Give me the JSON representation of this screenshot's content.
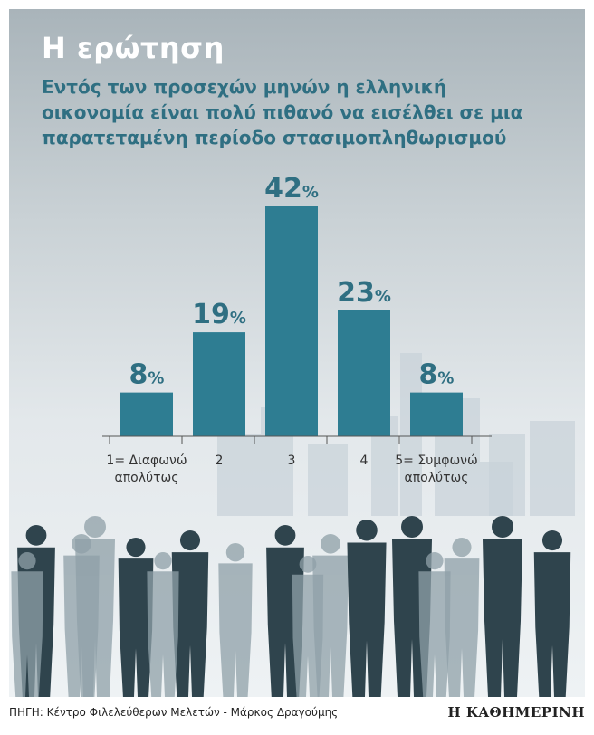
{
  "header": {
    "title": "Η ερώτηση",
    "question": "Εντός των προσεχών μηνών η ελληνική οικονομία είναι πολύ πιθανό να εισέλθει σε μια παρατεταμένη περίοδο στασιμοπληθωρισμού"
  },
  "footer": {
    "source": "ΠΗΓΗ: Κέντρο Φιλελεύθερων Μελετών - Μάρκος Δραγούμης",
    "brand": "Η ΚΑΘΗΜΕΡΙΝΗ"
  },
  "colors": {
    "bar": "#2e7d92",
    "value_label": "#2f6f82",
    "title": "#ffffff",
    "people_dark": "#2f444d",
    "people_light": "#8fa0a8"
  },
  "chart_data": {
    "type": "bar",
    "title": "Η ερώτηση",
    "categories": [
      "1= Διαφωνώ απολύτως",
      "2",
      "3",
      "4",
      "5= Συμφωνώ απολύτως"
    ],
    "category_lines": [
      [
        "1= Διαφωνώ",
        "απολύτως"
      ],
      [
        "2"
      ],
      [
        "3"
      ],
      [
        "4"
      ],
      [
        "5= Συμφωνώ",
        "απολύτως"
      ]
    ],
    "values": [
      8,
      19,
      42,
      23,
      8
    ],
    "value_suffix": "%",
    "ylim": [
      0,
      42
    ],
    "grid": false
  }
}
